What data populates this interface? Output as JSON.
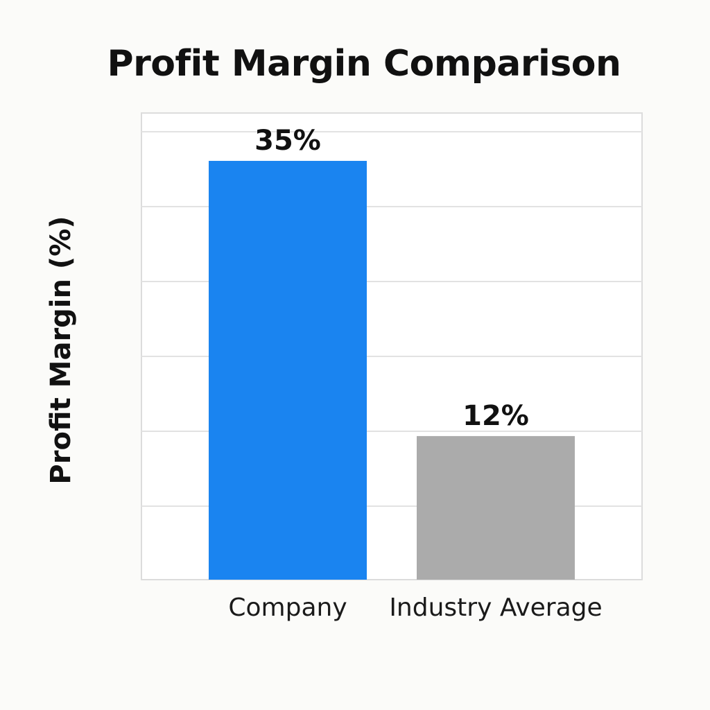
{
  "chart_data": {
    "type": "bar",
    "title": "Profit Margin Comparison",
    "xlabel": "",
    "ylabel": "Profit Margin (%)",
    "categories": [
      "Company",
      "Industry Average"
    ],
    "values": [
      35,
      12
    ],
    "data_labels": [
      "35%",
      "12%"
    ],
    "colors": [
      "#1a84f0",
      "#ababab"
    ],
    "ylim": [
      0,
      39
    ],
    "grid": "horizontal",
    "legend": "none"
  }
}
